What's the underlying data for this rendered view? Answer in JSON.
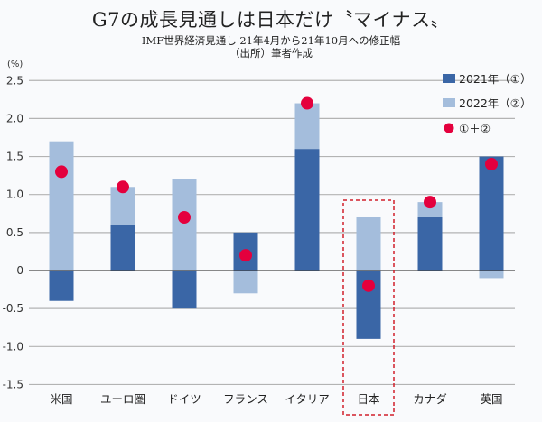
{
  "title": "G7の成長見通しは日本だけ〝マイナス〟",
  "subtitle_line1": "IMF世界経済見通し 21年4月から21年10月への修正幅",
  "subtitle_line2": "（出所）筆者作成",
  "chart_data": {
    "type": "bar",
    "stacked": true,
    "title": "G7の成長見通しは日本だけ〝マイナス〟",
    "ylabel": "(%)",
    "xlabel": "",
    "ylim": [
      -1.5,
      2.5
    ],
    "yticks": [
      2.5,
      2.0,
      1.5,
      1.0,
      0.5,
      0,
      -0.5,
      -1.0,
      -1.5
    ],
    "ytick_labels": [
      "2.5",
      "2.0",
      "1.5",
      "1.0",
      "0.5",
      "0",
      "-0.5",
      "-1.0",
      "-1.5"
    ],
    "grid": true,
    "legend_position": "top-right",
    "categories": [
      "米国",
      "ユーロ圏",
      "ドイツ",
      "フランス",
      "イタリア",
      "日本",
      "カナダ",
      "英国"
    ],
    "series": [
      {
        "name": "2021年（①）",
        "color": "#3a66a6",
        "values": [
          -0.4,
          0.6,
          -0.5,
          0.5,
          1.6,
          -0.9,
          0.7,
          1.5
        ]
      },
      {
        "name": "2022年（②）",
        "color": "#a4bddc",
        "values": [
          1.7,
          0.5,
          1.2,
          -0.3,
          0.6,
          0.7,
          0.2,
          -0.1
        ]
      },
      {
        "name": "①＋②",
        "color": "#e4003d",
        "type": "scatter",
        "values": [
          1.3,
          1.1,
          0.7,
          0.2,
          2.2,
          -0.2,
          0.9,
          1.4
        ]
      }
    ],
    "highlight_category": "日本"
  }
}
